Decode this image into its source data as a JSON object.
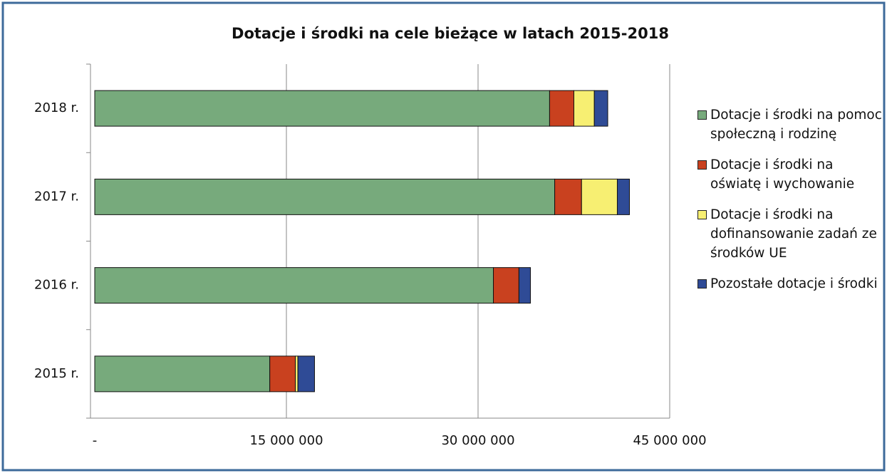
{
  "chart_data": {
    "type": "stacked-barh",
    "title": "Dotacje i środki na cele bieżące w latach 2015-2018",
    "categories": [
      "2018 r.",
      "2017 r.",
      "2016 r.",
      "2015 r."
    ],
    "series": [
      {
        "name": "Dotacje i środki na pomoc społeczną i rodzinę",
        "color": "#77aa7c",
        "values": [
          35600000,
          36000000,
          31200000,
          13700000
        ]
      },
      {
        "name": "Dotacje i środki na oświatę i wychowanie",
        "color": "#c9411f",
        "values": [
          1900000,
          2100000,
          2000000,
          2000000
        ]
      },
      {
        "name": "Dotacje i środki na dofinansowanie zadań ze środków UE",
        "color": "#f7ef72",
        "values": [
          1600000,
          2800000,
          0,
          200000
        ]
      },
      {
        "name": "Pozostałe dotacje i środki",
        "color": "#2f4b96",
        "values": [
          1050000,
          950000,
          900000,
          1300000
        ]
      }
    ],
    "xlim": [
      0,
      45000000
    ],
    "xticks": [
      {
        "value": 0,
        "label": "-"
      },
      {
        "value": 15000000,
        "label": "15 000 000"
      },
      {
        "value": 30000000,
        "label": "30 000 000"
      },
      {
        "value": 45000000,
        "label": "45 000 000"
      }
    ],
    "grid": true,
    "legend": "right"
  }
}
